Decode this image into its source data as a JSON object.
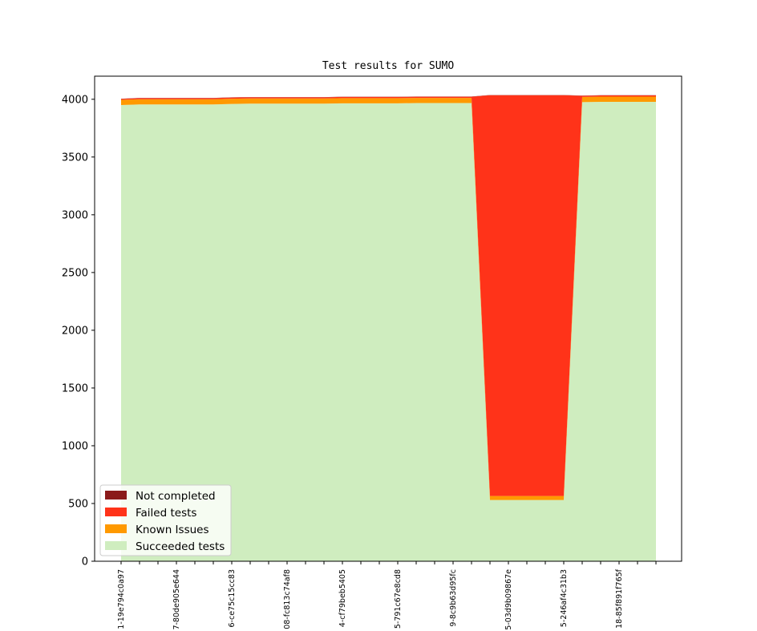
{
  "chart_data": {
    "type": "area",
    "stacked": true,
    "title": "Test results for SUMO",
    "xlabel": "",
    "ylabel": "",
    "ylim": [
      0,
      4200
    ],
    "yticks": [
      0,
      500,
      1000,
      1500,
      2000,
      2500,
      3000,
      3500,
      4000
    ],
    "xtick_labels": [
      "1-19e794c0a97",
      "7-80de905e644",
      "6-ce75c15cc83",
      "08-fc813c74af8",
      "4-cf79beb5405",
      "5-791c67e8cd8",
      "9-8c9b63d95fc",
      "5-03d9b09867e",
      "5-246af4c31b3",
      "18-85f891f765f"
    ],
    "x": [
      0,
      1,
      2,
      3,
      4,
      5,
      6,
      7,
      8,
      9,
      10,
      11,
      12,
      13,
      14,
      15,
      16,
      17,
      18,
      19,
      20,
      21,
      22,
      23,
      24,
      25,
      26,
      27,
      28,
      29
    ],
    "legend_position": "lower-left",
    "grid": false,
    "series": [
      {
        "name": "Succeeded tests",
        "color": "#cfedbf",
        "values": [
          3950,
          3955,
          3955,
          3955,
          3955,
          3955,
          3960,
          3962,
          3962,
          3962,
          3962,
          3962,
          3965,
          3965,
          3965,
          3965,
          3967,
          3967,
          3967,
          3967,
          530,
          530,
          530,
          530,
          530,
          3975,
          3978,
          3978,
          3978,
          3978
        ]
      },
      {
        "name": "Known Issues",
        "color": "#ff9900",
        "values": [
          45,
          45,
          45,
          45,
          45,
          45,
          45,
          45,
          45,
          45,
          45,
          45,
          45,
          45,
          45,
          45,
          45,
          45,
          45,
          45,
          35,
          35,
          35,
          35,
          35,
          45,
          45,
          45,
          45,
          45
        ]
      },
      {
        "name": "Failed tests",
        "color": "#ff3319",
        "values": [
          8,
          10,
          10,
          10,
          10,
          10,
          10,
          10,
          10,
          10,
          10,
          10,
          10,
          10,
          10,
          10,
          10,
          10,
          10,
          10,
          3470,
          3470,
          3470,
          3470,
          3470,
          10,
          10,
          10,
          10,
          10
        ]
      },
      {
        "name": "Not completed",
        "color": "#8b1a1a",
        "values": [
          2,
          2,
          2,
          2,
          2,
          2,
          2,
          2,
          2,
          2,
          2,
          2,
          2,
          2,
          2,
          2,
          2,
          2,
          2,
          2,
          2,
          2,
          2,
          2,
          2,
          2,
          2,
          2,
          2,
          2
        ]
      }
    ],
    "legend_order": [
      "Not completed",
      "Failed tests",
      "Known Issues",
      "Succeeded tests"
    ]
  }
}
